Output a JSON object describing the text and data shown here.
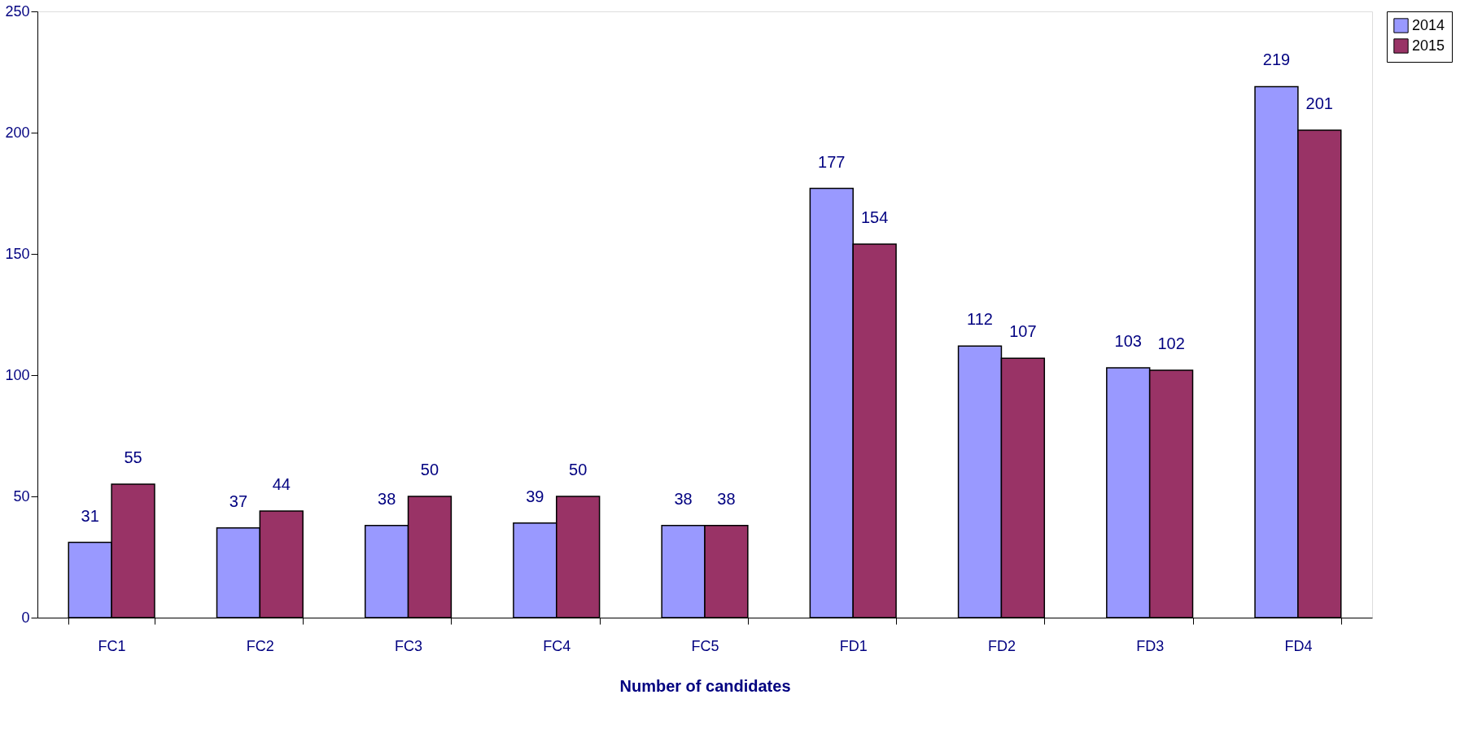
{
  "chart_data": {
    "type": "bar",
    "xlabel": "Number of candidates",
    "categories": [
      "FC1",
      "FC2",
      "FC3",
      "FC4",
      "FC5",
      "FD1",
      "FD2",
      "FD3",
      "FD4"
    ],
    "series": [
      {
        "name": "2014",
        "color": "#9999ff",
        "values": [
          31,
          37,
          38,
          39,
          38,
          177,
          112,
          103,
          219
        ]
      },
      {
        "name": "2015",
        "color": "#993366",
        "values": [
          55,
          44,
          50,
          50,
          38,
          154,
          107,
          102,
          201
        ]
      }
    ],
    "ylim": [
      0,
      250
    ],
    "yticks": [
      0,
      50,
      100,
      150,
      200,
      250
    ],
    "grid": false,
    "legend": "right",
    "data_labels": true
  }
}
